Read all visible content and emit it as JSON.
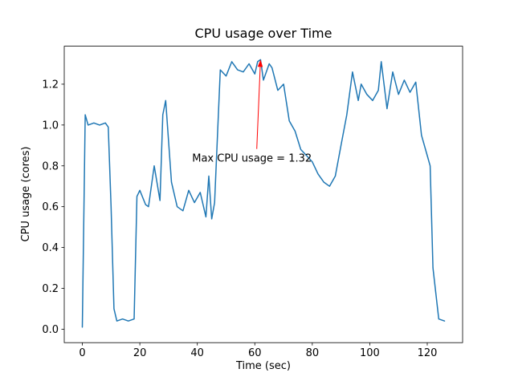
{
  "chart_data": {
    "type": "line",
    "title": "CPU usage over Time",
    "xlabel": "Time (sec)",
    "ylabel": "CPU usage (cores)",
    "line_color": "#1f77b4",
    "grid": false,
    "legend": null,
    "xlim": [
      -6.3,
      132.3
    ],
    "ylim": [
      -0.066,
      1.386
    ],
    "xticks": [
      0,
      20,
      40,
      60,
      80,
      100,
      120
    ],
    "yticks": [
      0.0,
      0.2,
      0.4,
      0.6,
      0.8,
      1.0,
      1.2
    ],
    "x": [
      0,
      1,
      2,
      4,
      6,
      8,
      9,
      10,
      11,
      12,
      14,
      16,
      18,
      19,
      20,
      22,
      23,
      25,
      27,
      28,
      29,
      31,
      33,
      35,
      37,
      39,
      41,
      43,
      44,
      45,
      46,
      48,
      50,
      52,
      54,
      56,
      58,
      60,
      61,
      62,
      63,
      65,
      66,
      68,
      70,
      72,
      74,
      76,
      78,
      80,
      82,
      84,
      86,
      88,
      90,
      92,
      94,
      96,
      97,
      99,
      101,
      103,
      104,
      106,
      108,
      110,
      112,
      114,
      116,
      118,
      120,
      121,
      122,
      124,
      126
    ],
    "y": [
      0.01,
      1.05,
      1.0,
      1.01,
      1.0,
      1.01,
      0.99,
      0.6,
      0.1,
      0.04,
      0.05,
      0.04,
      0.05,
      0.65,
      0.68,
      0.61,
      0.6,
      0.8,
      0.63,
      1.05,
      1.12,
      0.72,
      0.6,
      0.58,
      0.68,
      0.62,
      0.67,
      0.55,
      0.75,
      0.54,
      0.62,
      1.27,
      1.24,
      1.31,
      1.27,
      1.26,
      1.3,
      1.25,
      1.31,
      1.32,
      1.22,
      1.3,
      1.28,
      1.17,
      1.2,
      1.02,
      0.97,
      0.88,
      0.85,
      0.82,
      0.76,
      0.72,
      0.7,
      0.75,
      0.9,
      1.05,
      1.26,
      1.12,
      1.2,
      1.15,
      1.12,
      1.17,
      1.31,
      1.08,
      1.26,
      1.15,
      1.22,
      1.16,
      1.21,
      0.95,
      0.85,
      0.8,
      0.3,
      0.05,
      0.04
    ],
    "annotation": {
      "text": "Max CPU usage = 1.32",
      "color": "red",
      "xy": [
        62,
        1.32
      ],
      "xytext": [
        59,
        0.82
      ]
    }
  }
}
